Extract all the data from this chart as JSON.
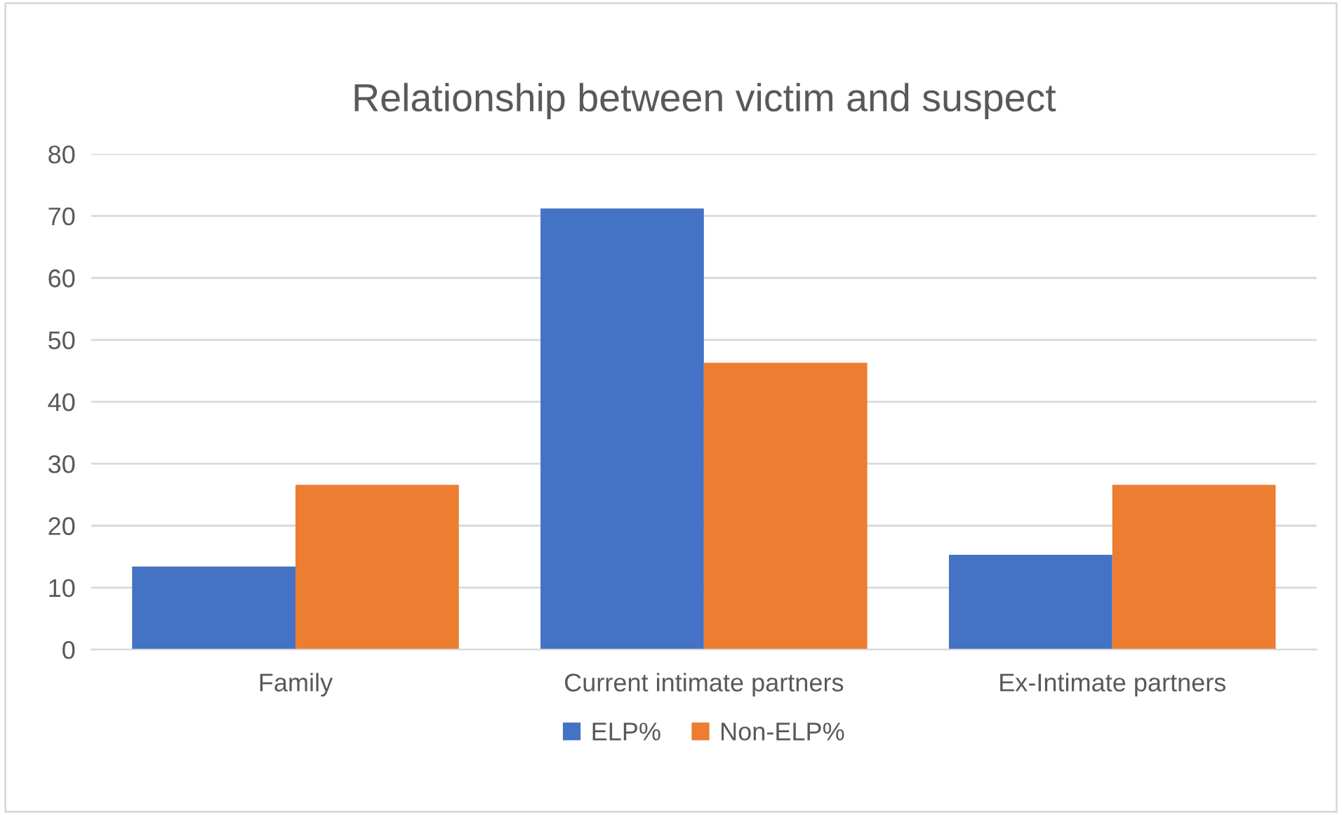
{
  "chart_data": {
    "type": "bar",
    "title": "Relationship between victim and suspect",
    "categories": [
      "Family",
      "Current intimate partners",
      "Ex-Intimate partners"
    ],
    "series": [
      {
        "name": "ELP%",
        "color": "#4472c4",
        "values": [
          13.4,
          71.2,
          15.3
        ]
      },
      {
        "name": "Non-ELP%",
        "color": "#ed7d31",
        "values": [
          26.6,
          46.3,
          26.6
        ]
      }
    ],
    "ylim": [
      0,
      80
    ],
    "yticks": [
      0,
      10,
      20,
      30,
      40,
      50,
      60,
      70,
      80
    ],
    "grid": "y",
    "legend": "bottom"
  }
}
